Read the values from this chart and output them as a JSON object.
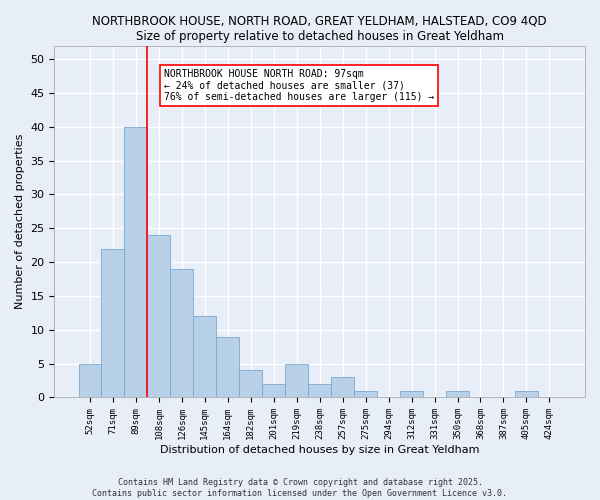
{
  "title1": "NORTHBROOK HOUSE, NORTH ROAD, GREAT YELDHAM, HALSTEAD, CO9 4QD",
  "title2": "Size of property relative to detached houses in Great Yeldham",
  "xlabel": "Distribution of detached houses by size in Great Yeldham",
  "ylabel": "Number of detached properties",
  "categories": [
    "52sqm",
    "71sqm",
    "89sqm",
    "108sqm",
    "126sqm",
    "145sqm",
    "164sqm",
    "182sqm",
    "201sqm",
    "219sqm",
    "238sqm",
    "257sqm",
    "275sqm",
    "294sqm",
    "312sqm",
    "331sqm",
    "350sqm",
    "368sqm",
    "387sqm",
    "405sqm",
    "424sqm"
  ],
  "values": [
    5,
    22,
    40,
    24,
    19,
    12,
    9,
    4,
    2,
    5,
    2,
    3,
    1,
    0,
    1,
    0,
    1,
    0,
    0,
    1,
    0
  ],
  "bar_color": "#b8d0e8",
  "bar_edge_color": "#7aaad0",
  "background_color": "#e8eef8",
  "grid_color": "#ffffff",
  "red_line_x": 2.5,
  "annotation_title": "NORTHBROOK HOUSE NORTH ROAD: 97sqm",
  "annotation_line1": "← 24% of detached houses are smaller (37)",
  "annotation_line2": "76% of semi-detached houses are larger (115) →",
  "footer1": "Contains HM Land Registry data © Crown copyright and database right 2025.",
  "footer2": "Contains public sector information licensed under the Open Government Licence v3.0.",
  "ylim": [
    0,
    52
  ],
  "yticks": [
    0,
    5,
    10,
    15,
    20,
    25,
    30,
    35,
    40,
    45,
    50
  ]
}
